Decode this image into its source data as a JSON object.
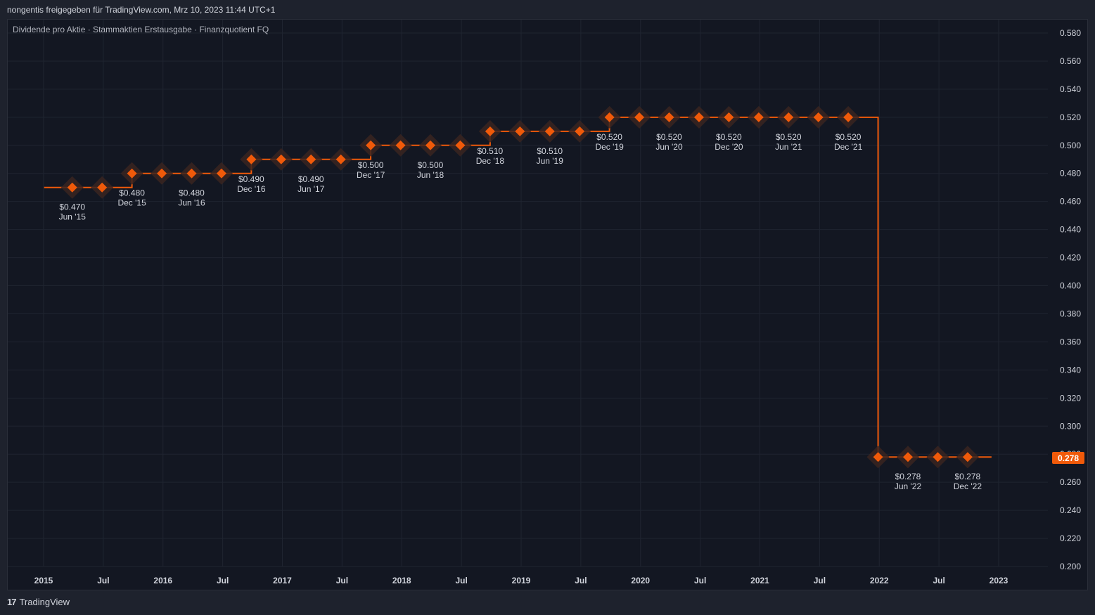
{
  "header": {
    "text": "nongentis freigegeben für TradingView.com, Mrz 10, 2023 11:44 UTC+1"
  },
  "footer": {
    "logo": "17",
    "brand": "TradingView"
  },
  "colors": {
    "accent": "#f05a0a",
    "background": "#131722",
    "grid": "#1f2430",
    "text": "#d1d4dc"
  },
  "chart_data": {
    "type": "line",
    "title": "Dividende pro Aktie · Stammaktien Erstausgabe · Finanzquotient FQ",
    "ylim": [
      0.2,
      0.58
    ],
    "y_ticks": [
      "0.580",
      "0.560",
      "0.540",
      "0.520",
      "0.500",
      "0.480",
      "0.460",
      "0.440",
      "0.420",
      "0.400",
      "0.380",
      "0.360",
      "0.340",
      "0.320",
      "0.300",
      "0.280",
      "0.260",
      "0.240",
      "0.220",
      "0.200"
    ],
    "x_ticks": [
      {
        "label": "2015",
        "t": 2015.0
      },
      {
        "label": "Jul",
        "t": 2015.5
      },
      {
        "label": "2016",
        "t": 2016.0
      },
      {
        "label": "Jul",
        "t": 2016.5
      },
      {
        "label": "2017",
        "t": 2017.0
      },
      {
        "label": "Jul",
        "t": 2017.5
      },
      {
        "label": "2018",
        "t": 2018.0
      },
      {
        "label": "Jul",
        "t": 2018.5
      },
      {
        "label": "2019",
        "t": 2019.0
      },
      {
        "label": "Jul",
        "t": 2019.5
      },
      {
        "label": "2020",
        "t": 2020.0
      },
      {
        "label": "Jul",
        "t": 2020.5
      },
      {
        "label": "2021",
        "t": 2021.0
      },
      {
        "label": "Jul",
        "t": 2021.5
      },
      {
        "label": "2022",
        "t": 2022.0
      },
      {
        "label": "Jul",
        "t": 2022.5
      },
      {
        "label": "2023",
        "t": 2023.0
      }
    ],
    "last_value": "0.278",
    "grid": true,
    "points": [
      {
        "t": 2015.24,
        "y": 0.47,
        "label": "$0.470",
        "date": "Jun '15"
      },
      {
        "t": 2015.49,
        "y": 0.47
      },
      {
        "t": 2015.74,
        "y": 0.48,
        "label": "$0.480",
        "date": "Dec '15"
      },
      {
        "t": 2015.99,
        "y": 0.48
      },
      {
        "t": 2016.24,
        "y": 0.48,
        "label": "$0.480",
        "date": "Jun '16"
      },
      {
        "t": 2016.49,
        "y": 0.48
      },
      {
        "t": 2016.74,
        "y": 0.49,
        "label": "$0.490",
        "date": "Dec '16"
      },
      {
        "t": 2016.99,
        "y": 0.49
      },
      {
        "t": 2017.24,
        "y": 0.49,
        "label": "$0.490",
        "date": "Jun '17"
      },
      {
        "t": 2017.49,
        "y": 0.49
      },
      {
        "t": 2017.74,
        "y": 0.5,
        "label": "$0.500",
        "date": "Dec '17"
      },
      {
        "t": 2017.99,
        "y": 0.5
      },
      {
        "t": 2018.24,
        "y": 0.5,
        "label": "$0.500",
        "date": "Jun '18"
      },
      {
        "t": 2018.49,
        "y": 0.5
      },
      {
        "t": 2018.74,
        "y": 0.51,
        "label": "$0.510",
        "date": "Dec '18"
      },
      {
        "t": 2018.99,
        "y": 0.51
      },
      {
        "t": 2019.24,
        "y": 0.51,
        "label": "$0.510",
        "date": "Jun '19"
      },
      {
        "t": 2019.49,
        "y": 0.51
      },
      {
        "t": 2019.74,
        "y": 0.52,
        "label": "$0.520",
        "date": "Dec '19"
      },
      {
        "t": 2019.99,
        "y": 0.52
      },
      {
        "t": 2020.24,
        "y": 0.52,
        "label": "$0.520",
        "date": "Jun '20"
      },
      {
        "t": 2020.49,
        "y": 0.52
      },
      {
        "t": 2020.74,
        "y": 0.52,
        "label": "$0.520",
        "date": "Dec '20"
      },
      {
        "t": 2020.99,
        "y": 0.52
      },
      {
        "t": 2021.24,
        "y": 0.52,
        "label": "$0.520",
        "date": "Jun '21"
      },
      {
        "t": 2021.49,
        "y": 0.52
      },
      {
        "t": 2021.74,
        "y": 0.52,
        "label": "$0.520",
        "date": "Dec '21"
      },
      {
        "t": 2021.99,
        "y": 0.278
      },
      {
        "t": 2022.24,
        "y": 0.278,
        "label": "$0.278",
        "date": "Jun '22"
      },
      {
        "t": 2022.49,
        "y": 0.278
      },
      {
        "t": 2022.74,
        "y": 0.278,
        "label": "$0.278",
        "date": "Dec '22"
      }
    ]
  }
}
